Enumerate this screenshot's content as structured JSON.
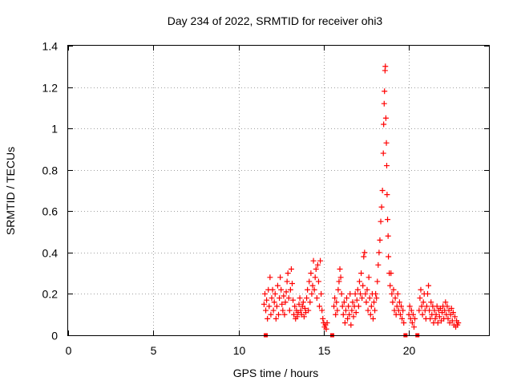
{
  "chart_data": {
    "type": "scatter",
    "title": "Day 234 of 2022, SRMTID for receiver ohi3",
    "xlabel": "GPS time / hours",
    "ylabel": "SRMTID / TECUs",
    "xlim": [
      0,
      24.7
    ],
    "ylim": [
      0,
      1.4
    ],
    "xticks": [
      0,
      5,
      10,
      15,
      20
    ],
    "xtick_labels": [
      "0",
      "5",
      "10",
      "15",
      "20"
    ],
    "yticks": [
      0,
      0.2,
      0.4,
      0.6,
      0.8,
      1.0,
      1.2,
      1.4
    ],
    "ytick_labels": [
      "0",
      "0.2",
      "0.4",
      "0.6",
      "0.8",
      "1",
      "1.2",
      "1.4"
    ],
    "grid": true,
    "marker": "+",
    "colors": {
      "series": "#ff0000",
      "axis": "#000000",
      "grid": "#a0a0a0"
    },
    "gap_markers_x": [
      11.6,
      15.5,
      19.8,
      20.5
    ],
    "series": [
      {
        "name": "SRMTID",
        "points": [
          [
            11.5,
            0.15
          ],
          [
            11.55,
            0.2
          ],
          [
            11.6,
            0.12
          ],
          [
            11.65,
            0.17
          ],
          [
            11.7,
            0.08
          ],
          [
            11.75,
            0.22
          ],
          [
            11.8,
            0.14
          ],
          [
            11.85,
            0.28
          ],
          [
            11.9,
            0.1
          ],
          [
            11.95,
            0.18
          ],
          [
            12.0,
            0.22
          ],
          [
            12.05,
            0.12
          ],
          [
            12.1,
            0.16
          ],
          [
            12.15,
            0.2
          ],
          [
            12.2,
            0.08
          ],
          [
            12.25,
            0.14
          ],
          [
            12.3,
            0.24
          ],
          [
            12.35,
            0.1
          ],
          [
            12.4,
            0.18
          ],
          [
            12.45,
            0.28
          ],
          [
            12.5,
            0.22
          ],
          [
            12.55,
            0.15
          ],
          [
            12.6,
            0.12
          ],
          [
            12.65,
            0.19
          ],
          [
            12.7,
            0.1
          ],
          [
            12.75,
            0.16
          ],
          [
            12.8,
            0.21
          ],
          [
            12.85,
            0.26
          ],
          [
            12.9,
            0.3
          ],
          [
            12.95,
            0.18
          ],
          [
            13.0,
            0.12
          ],
          [
            13.05,
            0.22
          ],
          [
            13.1,
            0.32
          ],
          [
            13.15,
            0.25
          ],
          [
            13.2,
            0.17
          ],
          [
            13.25,
            0.1
          ],
          [
            13.3,
            0.14
          ],
          [
            13.35,
            0.08
          ],
          [
            13.4,
            0.12
          ],
          [
            13.45,
            0.09
          ],
          [
            13.5,
            0.11
          ],
          [
            13.55,
            0.15
          ],
          [
            13.6,
            0.18
          ],
          [
            13.65,
            0.12
          ],
          [
            13.7,
            0.1
          ],
          [
            13.75,
            0.14
          ],
          [
            13.8,
            0.16
          ],
          [
            13.85,
            0.09
          ],
          [
            13.9,
            0.13
          ],
          [
            13.95,
            0.11
          ],
          [
            14.0,
            0.18
          ],
          [
            14.05,
            0.22
          ],
          [
            14.1,
            0.12
          ],
          [
            14.15,
            0.26
          ],
          [
            14.2,
            0.16
          ],
          [
            14.25,
            0.3
          ],
          [
            14.3,
            0.2
          ],
          [
            14.35,
            0.24
          ],
          [
            14.4,
            0.36
          ],
          [
            14.45,
            0.22
          ],
          [
            14.5,
            0.28
          ],
          [
            14.55,
            0.32
          ],
          [
            14.6,
            0.18
          ],
          [
            14.65,
            0.34
          ],
          [
            14.7,
            0.26
          ],
          [
            14.75,
            0.14
          ],
          [
            14.8,
            0.36
          ],
          [
            14.85,
            0.2
          ],
          [
            14.9,
            0.12
          ],
          [
            14.95,
            0.08
          ],
          [
            15.0,
            0.06
          ],
          [
            15.05,
            0.04
          ],
          [
            15.1,
            0.05
          ],
          [
            15.15,
            0.03
          ],
          [
            15.2,
            0.06
          ],
          [
            15.6,
            0.14
          ],
          [
            15.65,
            0.18
          ],
          [
            15.7,
            0.1
          ],
          [
            15.75,
            0.16
          ],
          [
            15.8,
            0.12
          ],
          [
            15.85,
            0.22
          ],
          [
            15.9,
            0.26
          ],
          [
            15.95,
            0.32
          ],
          [
            16.0,
            0.28
          ],
          [
            16.05,
            0.2
          ],
          [
            16.1,
            0.14
          ],
          [
            16.15,
            0.1
          ],
          [
            16.2,
            0.16
          ],
          [
            16.25,
            0.06
          ],
          [
            16.3,
            0.12
          ],
          [
            16.35,
            0.18
          ],
          [
            16.4,
            0.08
          ],
          [
            16.45,
            0.14
          ],
          [
            16.5,
            0.1
          ],
          [
            16.55,
            0.2
          ],
          [
            16.6,
            0.05
          ],
          [
            16.65,
            0.12
          ],
          [
            16.7,
            0.16
          ],
          [
            16.75,
            0.09
          ],
          [
            16.8,
            0.14
          ],
          [
            16.85,
            0.2
          ],
          [
            16.9,
            0.11
          ],
          [
            16.95,
            0.17
          ],
          [
            17.0,
            0.22
          ],
          [
            17.05,
            0.14
          ],
          [
            17.1,
            0.26
          ],
          [
            17.15,
            0.2
          ],
          [
            17.2,
            0.3
          ],
          [
            17.25,
            0.18
          ],
          [
            17.3,
            0.24
          ],
          [
            17.35,
            0.38
          ],
          [
            17.4,
            0.4
          ],
          [
            17.45,
            0.2
          ],
          [
            17.5,
            0.16
          ],
          [
            17.55,
            0.22
          ],
          [
            17.6,
            0.12
          ],
          [
            17.65,
            0.28
          ],
          [
            17.7,
            0.18
          ],
          [
            17.75,
            0.1
          ],
          [
            17.8,
            0.14
          ],
          [
            17.85,
            0.2
          ],
          [
            17.9,
            0.08
          ],
          [
            17.95,
            0.16
          ],
          [
            18.0,
            0.12
          ],
          [
            18.05,
            0.2
          ],
          [
            18.1,
            0.18
          ],
          [
            18.15,
            0.26
          ],
          [
            18.2,
            0.34
          ],
          [
            18.25,
            0.4
          ],
          [
            18.3,
            0.46
          ],
          [
            18.35,
            0.55
          ],
          [
            18.4,
            0.62
          ],
          [
            18.45,
            0.7
          ],
          [
            18.5,
            0.88
          ],
          [
            18.52,
            1.02
          ],
          [
            18.55,
            1.12
          ],
          [
            18.57,
            1.18
          ],
          [
            18.6,
            1.28
          ],
          [
            18.62,
            1.3
          ],
          [
            18.65,
            1.05
          ],
          [
            18.68,
            0.93
          ],
          [
            18.7,
            0.82
          ],
          [
            18.72,
            0.68
          ],
          [
            18.75,
            0.56
          ],
          [
            18.78,
            0.48
          ],
          [
            18.8,
            0.38
          ],
          [
            18.85,
            0.3
          ],
          [
            18.9,
            0.24
          ],
          [
            18.95,
            0.3
          ],
          [
            19.0,
            0.2
          ],
          [
            19.05,
            0.16
          ],
          [
            19.1,
            0.22
          ],
          [
            19.15,
            0.12
          ],
          [
            19.2,
            0.18
          ],
          [
            19.25,
            0.1
          ],
          [
            19.3,
            0.14
          ],
          [
            19.35,
            0.2
          ],
          [
            19.4,
            0.12
          ],
          [
            19.45,
            0.16
          ],
          [
            19.5,
            0.1
          ],
          [
            19.55,
            0.14
          ],
          [
            19.6,
            0.08
          ],
          [
            19.65,
            0.12
          ],
          [
            19.7,
            0.06
          ],
          [
            20.0,
            0.1
          ],
          [
            20.05,
            0.14
          ],
          [
            20.1,
            0.08
          ],
          [
            20.15,
            0.12
          ],
          [
            20.2,
            0.06
          ],
          [
            20.25,
            0.1
          ],
          [
            20.3,
            0.04
          ],
          [
            20.35,
            0.08
          ],
          [
            20.6,
            0.12
          ],
          [
            20.65,
            0.18
          ],
          [
            20.7,
            0.22
          ],
          [
            20.75,
            0.14
          ],
          [
            20.8,
            0.1
          ],
          [
            20.85,
            0.16
          ],
          [
            20.9,
            0.2
          ],
          [
            20.95,
            0.12
          ],
          [
            21.0,
            0.08
          ],
          [
            21.05,
            0.14
          ],
          [
            21.1,
            0.2
          ],
          [
            21.15,
            0.24
          ],
          [
            21.2,
            0.12
          ],
          [
            21.25,
            0.08
          ],
          [
            21.3,
            0.16
          ],
          [
            21.35,
            0.1
          ],
          [
            21.4,
            0.14
          ],
          [
            21.45,
            0.06
          ],
          [
            21.5,
            0.12
          ],
          [
            21.55,
            0.08
          ],
          [
            21.6,
            0.1
          ],
          [
            21.65,
            0.14
          ],
          [
            21.7,
            0.06
          ],
          [
            21.75,
            0.12
          ],
          [
            21.8,
            0.09
          ],
          [
            21.85,
            0.13
          ],
          [
            21.9,
            0.07
          ],
          [
            21.95,
            0.11
          ],
          [
            22.0,
            0.14
          ],
          [
            22.05,
            0.08
          ],
          [
            22.1,
            0.12
          ],
          [
            22.15,
            0.16
          ],
          [
            22.2,
            0.1
          ],
          [
            22.25,
            0.14
          ],
          [
            22.3,
            0.08
          ],
          [
            22.35,
            0.12
          ],
          [
            22.4,
            0.06
          ],
          [
            22.45,
            0.1
          ],
          [
            22.5,
            0.13
          ],
          [
            22.55,
            0.07
          ],
          [
            22.6,
            0.11
          ],
          [
            22.65,
            0.05
          ],
          [
            22.7,
            0.09
          ],
          [
            22.75,
            0.04
          ],
          [
            22.8,
            0.07
          ],
          [
            22.85,
            0.05
          ],
          [
            22.9,
            0.06
          ]
        ]
      }
    ]
  }
}
